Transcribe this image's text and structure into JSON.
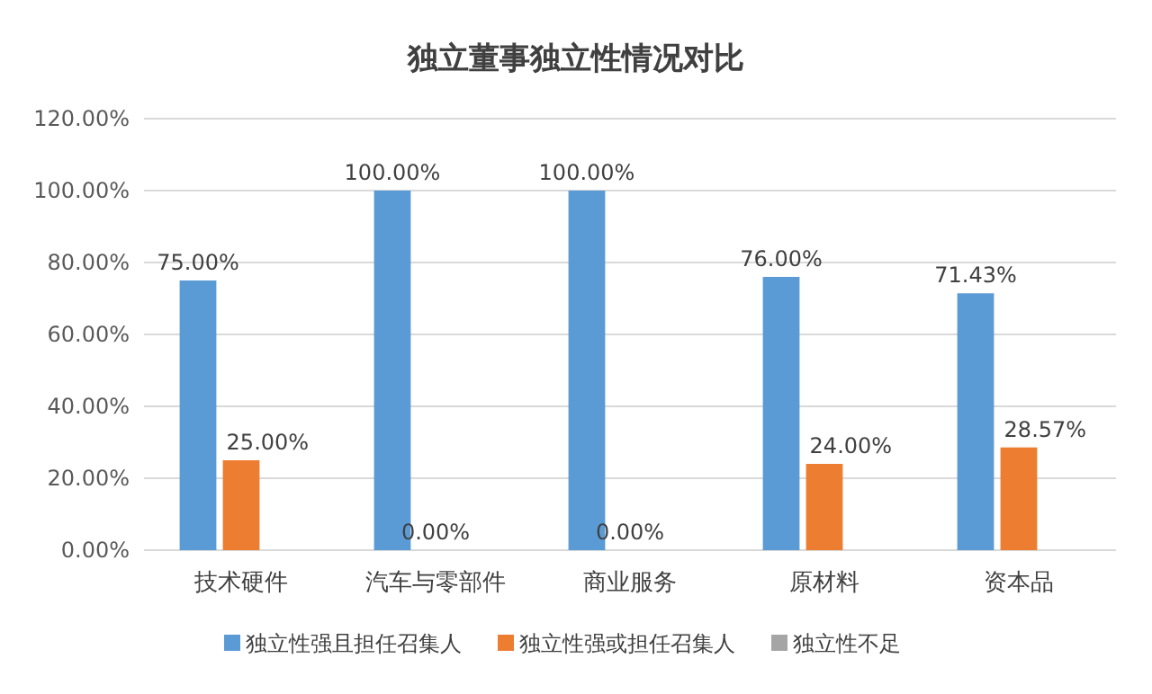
{
  "chart_data": {
    "type": "bar",
    "title": "独立董事独立性情况对比",
    "categories": [
      "技术硬件",
      "汽车与零部件",
      "商业服务",
      "原材料",
      "资本品"
    ],
    "series": [
      {
        "name": "独立性强且担任召集人",
        "color": "#5b9bd5",
        "values": [
          75,
          100,
          100,
          76,
          71.43
        ],
        "value_labels": [
          "75.00%",
          "100.00%",
          "100.00%",
          "76.00%",
          "71.43%"
        ]
      },
      {
        "name": "独立性强或担任召集人",
        "color": "#ed7d31",
        "values": [
          25,
          0,
          0,
          24,
          28.57
        ],
        "value_labels": [
          "25.00%",
          "0.00%",
          "0.00%",
          "24.00%",
          "28.57%"
        ]
      },
      {
        "name": "独立性不足",
        "color": "#a5a5a5",
        "values": [
          0,
          0,
          0,
          0,
          0
        ]
      }
    ],
    "ylim": [
      0,
      120
    ],
    "yticks": [
      {
        "value": 0,
        "label": "0.00%"
      },
      {
        "value": 20,
        "label": "20.00%"
      },
      {
        "value": 40,
        "label": "40.00%"
      },
      {
        "value": 60,
        "label": "60.00%"
      },
      {
        "value": 80,
        "label": "80.00%"
      },
      {
        "value": 100,
        "label": "100.00%"
      },
      {
        "value": 120,
        "label": "120.00%"
      }
    ],
    "grid": "y",
    "legend": "bottom"
  }
}
